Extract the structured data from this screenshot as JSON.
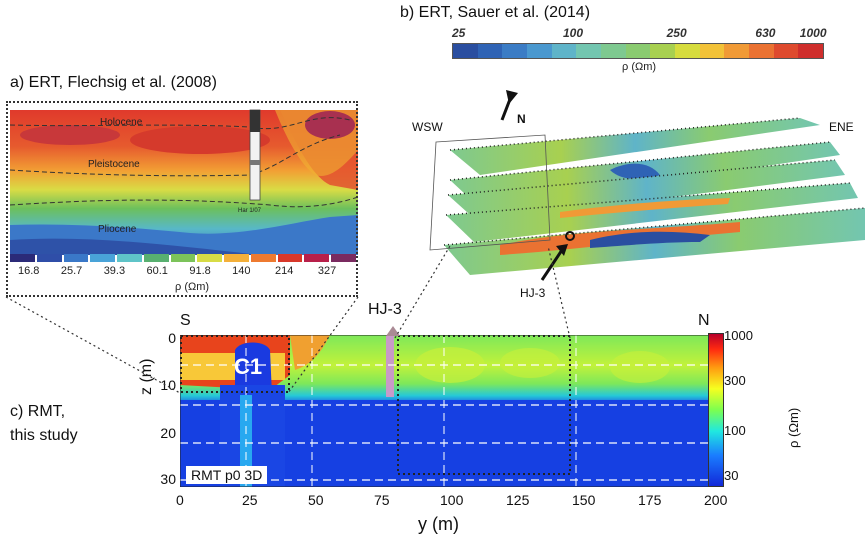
{
  "panel_a": {
    "title": "a) ERT, Flechsig et al. (2008)",
    "labels": {
      "holocene": "Holocene",
      "pleistocene": "Pleistocene",
      "pliocene": "Pliocene",
      "borehole": "Har 1/07"
    },
    "colorbar": {
      "colors": [
        "#2b2a78",
        "#2f4ea8",
        "#3a78c8",
        "#49a3d8",
        "#5fc4c8",
        "#58b070",
        "#7cc35a",
        "#d8dc46",
        "#f4b03a",
        "#ee7a30",
        "#d8382a",
        "#b8204a",
        "#7a2a60"
      ],
      "ticks": [
        "16.8",
        "25.7",
        "39.3",
        "60.1",
        "91.8",
        "140",
        "214",
        "327"
      ],
      "unit": "ρ (Ωm)"
    }
  },
  "panel_b": {
    "title": "b) ERT, Sauer et al. (2014)",
    "wsw": "WSW",
    "ene": "ENE",
    "north": "N",
    "well": "HJ-3",
    "colorbar": {
      "colors": [
        "#2a4ea0",
        "#2f63b5",
        "#3b7cc5",
        "#4a98cf",
        "#5fb4c9",
        "#73c6b0",
        "#7ec990",
        "#8acb70",
        "#a8d050",
        "#d6dc3e",
        "#f2c238",
        "#f09a36",
        "#ea7232",
        "#de4a2e",
        "#cf2e2c"
      ],
      "ticks": [
        "25",
        "100",
        "250",
        "630",
        "1000"
      ],
      "unit": "ρ (Ωm)"
    }
  },
  "panel_c": {
    "title_line1": "c) RMT,",
    "title_line2": "this study",
    "south": "S",
    "north": "N",
    "well": "HJ-3",
    "anomaly": "C1",
    "model": "RMT p0 3D",
    "xlabel": "y (m)",
    "ylabel": "z (m)",
    "xticks": [
      "0",
      "25",
      "50",
      "75",
      "100",
      "125",
      "150",
      "175",
      "200"
    ],
    "yticks": [
      "0",
      "10",
      "20",
      "30"
    ],
    "colorbar": {
      "ticks": [
        "1000",
        "300",
        "100",
        "30"
      ],
      "unit": "ρ (Ωm)"
    }
  }
}
